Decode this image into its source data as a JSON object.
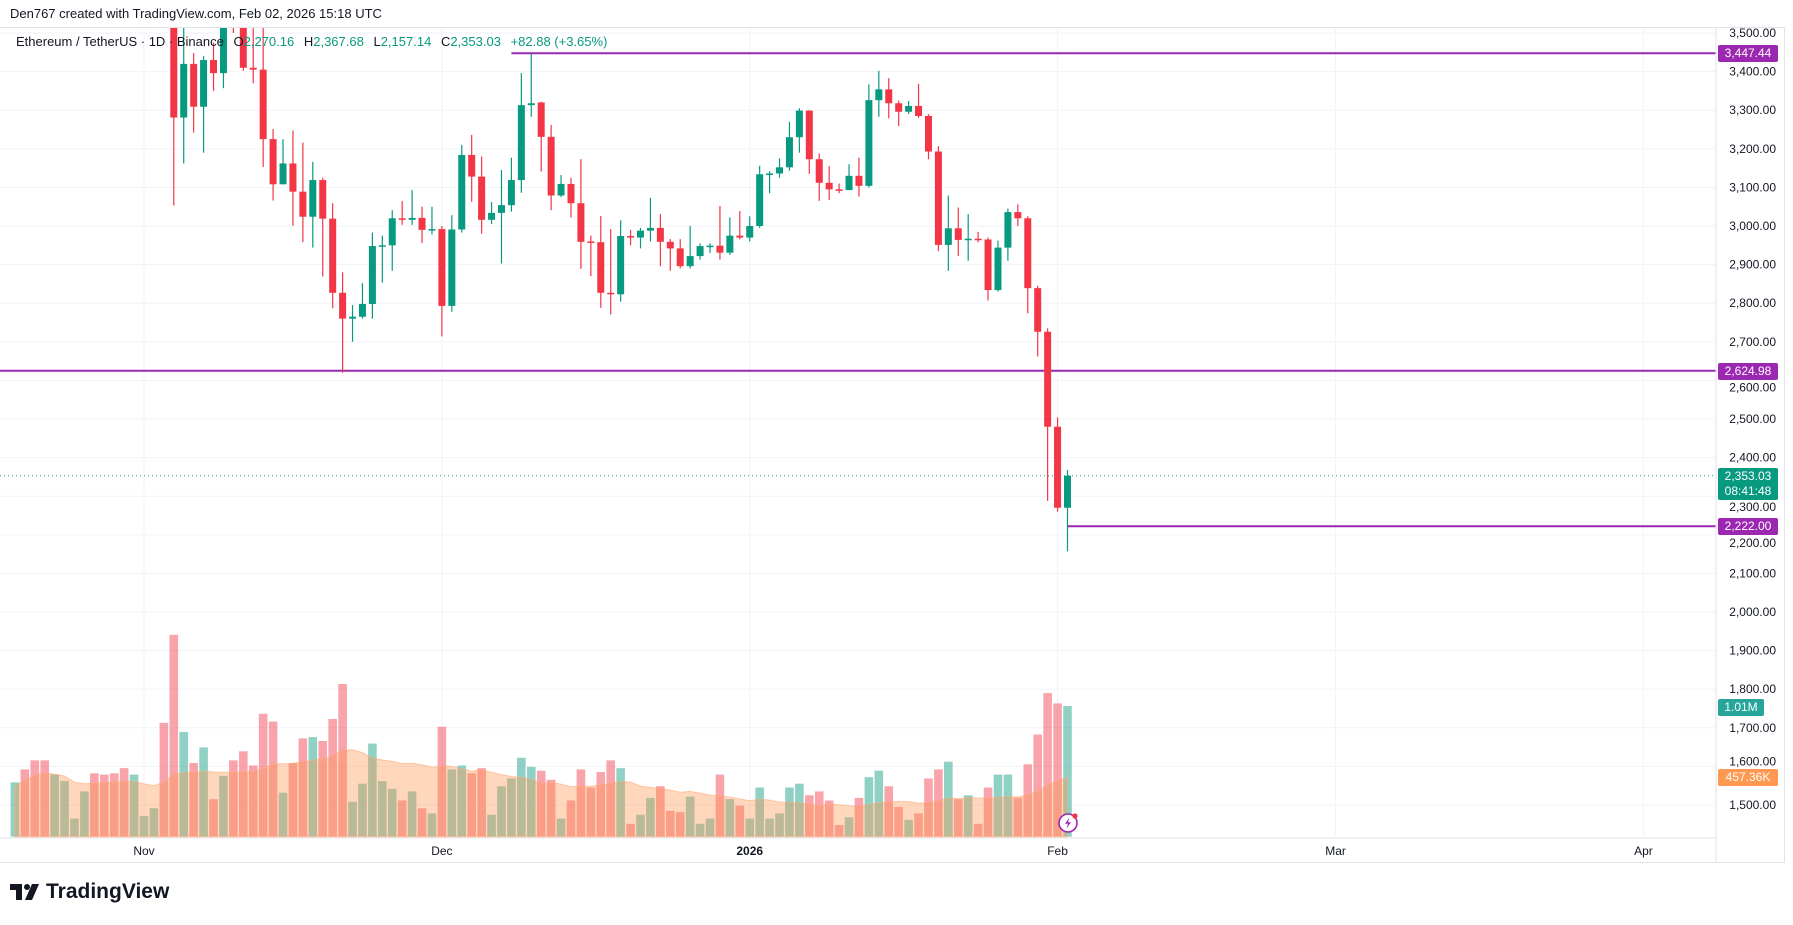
{
  "attribution": "Den767 created with TradingView.com, Feb 02, 2026 15:18 UTC",
  "legend": {
    "symbol": "Ethereum / TetherUS · 1D · Binance",
    "open_label": "O",
    "open": "2,270.16",
    "high_label": "H",
    "high": "2,367.68",
    "low_label": "L",
    "low": "2,157.14",
    "close_label": "C",
    "close": "2,353.03",
    "change": "+82.88 (+3.65%)"
  },
  "price_labels": {
    "resistance": "3,447.44",
    "support_mid": "2,624.98",
    "support_low": "2,222.00",
    "last_price": "2,353.03",
    "countdown": "08:41:48",
    "volume": "1.01M",
    "volume_ma": "457.36K"
  },
  "footer": {
    "brand": "TradingView"
  },
  "colors": {
    "up": "#089981",
    "down": "#f23645",
    "level_line": "#9c27b0",
    "volume_ma": "#ff9800"
  },
  "chart_data": {
    "type": "candlestick",
    "symbol": "ETHUSDT",
    "interval": "1D",
    "ylim": [
      1450,
      3520
    ],
    "y_ticks": [
      "3,500.00",
      "3,400.00",
      "3,300.00",
      "3,200.00",
      "3,100.00",
      "3,000.00",
      "2,900.00",
      "2,800.00",
      "2,700.00",
      "2,600.00",
      "2,500.00",
      "2,400.00",
      "2,300.00",
      "2,200.00",
      "2,100.00",
      "2,000.00",
      "1,900.00",
      "1,800.00",
      "1,700.00",
      "1,600.00",
      "1,500.00"
    ],
    "x_ticks": [
      {
        "label": "Nov",
        "date": "2025-11-01"
      },
      {
        "label": "Dec",
        "date": "2025-12-01"
      },
      {
        "label": "2026",
        "date": "2026-01-01"
      },
      {
        "label": "Feb",
        "date": "2026-02-01"
      },
      {
        "label": "Mar",
        "date": "2026-03-01"
      },
      {
        "label": "Apr",
        "date": "2026-04-01"
      }
    ],
    "x_range": [
      "2025-10-18",
      "2026-04-07"
    ],
    "grid": true,
    "horizontal_levels": [
      {
        "price": 3447.44,
        "from": "2025-12-08"
      },
      {
        "price": 2624.98,
        "from": "2025-10-18"
      },
      {
        "price": 2222.0,
        "from": "2026-02-02"
      }
    ],
    "last_price": 2353.03,
    "candles_columns": [
      "date",
      "open",
      "high",
      "low",
      "close"
    ],
    "candles": [
      [
        "2025-11-04",
        3580,
        3600,
        3053,
        3281
      ],
      [
        "2025-11-05",
        3281,
        3540,
        3162,
        3420
      ],
      [
        "2025-11-06",
        3420,
        3448,
        3242,
        3309
      ],
      [
        "2025-11-07",
        3309,
        3440,
        3190,
        3430
      ],
      [
        "2025-11-08",
        3430,
        3475,
        3350,
        3396
      ],
      [
        "2025-11-09",
        3396,
        3620,
        3357,
        3560
      ],
      [
        "2025-11-10",
        3560,
        3640,
        3500,
        3540
      ],
      [
        "2025-11-11",
        3540,
        3560,
        3402,
        3410
      ],
      [
        "2025-11-12",
        3410,
        3520,
        3370,
        3405
      ],
      [
        "2025-11-13",
        3405,
        3530,
        3153,
        3225
      ],
      [
        "2025-11-14",
        3225,
        3251,
        3066,
        3108
      ],
      [
        "2025-11-15",
        3108,
        3225,
        3108,
        3162
      ],
      [
        "2025-11-16",
        3162,
        3247,
        3001,
        3089
      ],
      [
        "2025-11-17",
        3089,
        3216,
        2958,
        3024
      ],
      [
        "2025-11-18",
        3024,
        3166,
        2944,
        3119
      ],
      [
        "2025-11-19",
        3119,
        3125,
        2869,
        3019
      ],
      [
        "2025-11-20",
        3019,
        3059,
        2787,
        2827
      ],
      [
        "2025-11-21",
        2827,
        2880,
        2620,
        2760
      ],
      [
        "2025-11-22",
        2760,
        2795,
        2700,
        2765
      ],
      [
        "2025-11-23",
        2765,
        2852,
        2760,
        2798
      ],
      [
        "2025-11-24",
        2798,
        2983,
        2760,
        2948
      ],
      [
        "2025-11-25",
        2948,
        2975,
        2853,
        2950
      ],
      [
        "2025-11-26",
        2950,
        3041,
        2884,
        3020
      ],
      [
        "2025-11-27",
        3020,
        3065,
        3003,
        3016
      ],
      [
        "2025-11-28",
        3016,
        3093,
        3003,
        3021
      ],
      [
        "2025-11-29",
        3021,
        3050,
        2956,
        2990
      ],
      [
        "2025-11-30",
        2990,
        3050,
        2978,
        2992
      ],
      [
        "2025-12-01",
        2992,
        3000,
        2714,
        2793
      ],
      [
        "2025-12-02",
        2793,
        3028,
        2778,
        2991
      ],
      [
        "2025-12-03",
        2991,
        3210,
        2983,
        3184
      ],
      [
        "2025-12-04",
        3184,
        3236,
        3063,
        3128
      ],
      [
        "2025-12-05",
        3128,
        3180,
        2980,
        3016
      ],
      [
        "2025-12-06",
        3016,
        3062,
        3005,
        3034
      ],
      [
        "2025-12-07",
        3034,
        3145,
        2903,
        3054
      ],
      [
        "2025-12-08",
        3054,
        3177,
        3037,
        3119
      ],
      [
        "2025-12-09",
        3119,
        3396,
        3086,
        3313
      ],
      [
        "2025-12-10",
        3313,
        3447,
        3283,
        3318
      ],
      [
        "2025-12-11",
        3320,
        3322,
        3141,
        3231
      ],
      [
        "2025-12-12",
        3231,
        3262,
        3041,
        3079
      ],
      [
        "2025-12-13",
        3079,
        3132,
        3075,
        3109
      ],
      [
        "2025-12-14",
        3109,
        3125,
        3022,
        3059
      ],
      [
        "2025-12-15",
        3059,
        3173,
        2889,
        2959
      ],
      [
        "2025-12-16",
        2960,
        2975,
        2870,
        2958
      ],
      [
        "2025-12-17",
        2958,
        3026,
        2788,
        2827
      ],
      [
        "2025-12-18",
        2827,
        2992,
        2771,
        2823
      ],
      [
        "2025-12-19",
        2823,
        3015,
        2804,
        2974
      ],
      [
        "2025-12-20",
        2974,
        2990,
        2950,
        2970
      ],
      [
        "2025-12-21",
        2970,
        2995,
        2942,
        2988
      ],
      [
        "2025-12-22",
        2988,
        3073,
        2960,
        2995
      ],
      [
        "2025-12-23",
        2995,
        3031,
        2896,
        2959
      ],
      [
        "2025-12-24",
        2959,
        2966,
        2884,
        2942
      ],
      [
        "2025-12-25",
        2942,
        2966,
        2890,
        2896
      ],
      [
        "2025-12-26",
        2896,
        3000,
        2890,
        2922
      ],
      [
        "2025-12-27",
        2922,
        2955,
        2913,
        2948
      ],
      [
        "2025-12-28",
        2948,
        2955,
        2930,
        2949
      ],
      [
        "2025-12-29",
        2949,
        3052,
        2913,
        2931
      ],
      [
        "2025-12-30",
        2931,
        3022,
        2925,
        2975
      ],
      [
        "2025-12-31",
        2975,
        3039,
        2965,
        2970
      ],
      [
        "2026-01-01",
        2970,
        3025,
        2960,
        3000
      ],
      [
        "2026-01-02",
        3000,
        3156,
        2995,
        3134
      ],
      [
        "2026-01-03",
        3134,
        3142,
        3085,
        3136
      ],
      [
        "2026-01-04",
        3136,
        3175,
        3125,
        3152
      ],
      [
        "2026-01-05",
        3152,
        3270,
        3143,
        3230
      ],
      [
        "2026-01-06",
        3230,
        3305,
        3190,
        3299
      ],
      [
        "2026-01-07",
        3299,
        3300,
        3135,
        3173
      ],
      [
        "2026-01-08",
        3173,
        3188,
        3065,
        3112
      ],
      [
        "2026-01-09",
        3112,
        3155,
        3067,
        3095
      ],
      [
        "2026-01-10",
        3095,
        3110,
        3085,
        3093
      ],
      [
        "2026-01-11",
        3093,
        3160,
        3093,
        3130
      ],
      [
        "2026-01-12",
        3130,
        3177,
        3076,
        3104
      ],
      [
        "2026-01-13",
        3104,
        3367,
        3100,
        3326
      ],
      [
        "2026-01-14",
        3326,
        3402,
        3283,
        3354
      ],
      [
        "2026-01-15",
        3354,
        3383,
        3279,
        3318
      ],
      [
        "2026-01-16",
        3318,
        3325,
        3259,
        3296
      ],
      [
        "2026-01-17",
        3296,
        3324,
        3290,
        3311
      ],
      [
        "2026-01-18",
        3311,
        3368,
        3280,
        3285
      ],
      [
        "2026-01-19",
        3285,
        3290,
        3173,
        3193
      ],
      [
        "2026-01-20",
        3193,
        3207,
        2935,
        2951
      ],
      [
        "2026-01-21",
        2951,
        3079,
        2884,
        2994
      ],
      [
        "2026-01-22",
        2994,
        3048,
        2922,
        2964
      ],
      [
        "2026-01-23",
        2964,
        3031,
        2910,
        2967
      ],
      [
        "2026-01-24",
        2967,
        2985,
        2958,
        2965
      ],
      [
        "2026-01-25",
        2965,
        2970,
        2807,
        2834
      ],
      [
        "2026-01-26",
        2834,
        2962,
        2830,
        2944
      ],
      [
        "2026-01-27",
        2944,
        3045,
        2910,
        3036
      ],
      [
        "2026-01-28",
        3036,
        3056,
        3000,
        3020
      ],
      [
        "2026-01-29",
        3020,
        3025,
        2774,
        2839
      ],
      [
        "2026-01-30",
        2839,
        2845,
        2662,
        2726
      ],
      [
        "2026-01-31",
        2726,
        2735,
        2288,
        2480
      ],
      [
        "2026-02-01",
        2480,
        2504,
        2260,
        2270.16
      ],
      [
        "2026-02-02",
        2270.16,
        2367.68,
        2157.14,
        2353.03
      ]
    ],
    "volume_unit": "M",
    "volume_columns": [
      "date",
      "volume",
      "direction"
    ],
    "volume": [
      [
        "2025-10-19",
        0.42,
        "up"
      ],
      [
        "2025-10-20",
        0.52,
        "down"
      ],
      [
        "2025-10-21",
        0.59,
        "down"
      ],
      [
        "2025-10-22",
        0.59,
        "down"
      ],
      [
        "2025-10-23",
        0.48,
        "up"
      ],
      [
        "2025-10-24",
        0.43,
        "up"
      ],
      [
        "2025-10-25",
        0.14,
        "up"
      ],
      [
        "2025-10-26",
        0.35,
        "up"
      ],
      [
        "2025-10-27",
        0.49,
        "down"
      ],
      [
        "2025-10-28",
        0.48,
        "down"
      ],
      [
        "2025-10-29",
        0.49,
        "down"
      ],
      [
        "2025-10-30",
        0.53,
        "down"
      ],
      [
        "2025-10-31",
        0.48,
        "up"
      ],
      [
        "2025-11-01",
        0.16,
        "up"
      ],
      [
        "2025-11-02",
        0.22,
        "up"
      ],
      [
        "2025-11-03",
        0.88,
        "down"
      ],
      [
        "2025-11-04",
        1.56,
        "down"
      ],
      [
        "2025-11-05",
        0.81,
        "up"
      ],
      [
        "2025-11-06",
        0.57,
        "down"
      ],
      [
        "2025-11-07",
        0.69,
        "up"
      ],
      [
        "2025-11-08",
        0.29,
        "down"
      ],
      [
        "2025-11-09",
        0.47,
        "up"
      ],
      [
        "2025-11-10",
        0.59,
        "down"
      ],
      [
        "2025-11-11",
        0.66,
        "down"
      ],
      [
        "2025-11-12",
        0.55,
        "down"
      ],
      [
        "2025-11-13",
        0.95,
        "down"
      ],
      [
        "2025-11-14",
        0.89,
        "down"
      ],
      [
        "2025-11-15",
        0.34,
        "up"
      ],
      [
        "2025-11-16",
        0.57,
        "down"
      ],
      [
        "2025-11-17",
        0.76,
        "down"
      ],
      [
        "2025-11-18",
        0.77,
        "up"
      ],
      [
        "2025-11-19",
        0.74,
        "down"
      ],
      [
        "2025-11-20",
        0.91,
        "down"
      ],
      [
        "2025-11-21",
        1.18,
        "down"
      ],
      [
        "2025-11-22",
        0.27,
        "up"
      ],
      [
        "2025-11-23",
        0.41,
        "up"
      ],
      [
        "2025-11-24",
        0.72,
        "up"
      ],
      [
        "2025-11-25",
        0.43,
        "up"
      ],
      [
        "2025-11-26",
        0.37,
        "up"
      ],
      [
        "2025-11-27",
        0.28,
        "down"
      ],
      [
        "2025-11-28",
        0.35,
        "up"
      ],
      [
        "2025-11-29",
        0.22,
        "down"
      ],
      [
        "2025-11-30",
        0.18,
        "up"
      ],
      [
        "2025-12-01",
        0.85,
        "down"
      ],
      [
        "2025-12-02",
        0.52,
        "up"
      ],
      [
        "2025-12-03",
        0.55,
        "up"
      ],
      [
        "2025-12-04",
        0.49,
        "down"
      ],
      [
        "2025-12-05",
        0.53,
        "down"
      ],
      [
        "2025-12-06",
        0.17,
        "up"
      ],
      [
        "2025-12-07",
        0.39,
        "up"
      ],
      [
        "2025-12-08",
        0.45,
        "up"
      ],
      [
        "2025-12-09",
        0.61,
        "up"
      ],
      [
        "2025-12-10",
        0.54,
        "up"
      ],
      [
        "2025-12-11",
        0.51,
        "down"
      ],
      [
        "2025-12-12",
        0.44,
        "down"
      ],
      [
        "2025-12-13",
        0.14,
        "up"
      ],
      [
        "2025-12-14",
        0.28,
        "down"
      ],
      [
        "2025-12-15",
        0.52,
        "down"
      ],
      [
        "2025-12-16",
        0.38,
        "down"
      ],
      [
        "2025-12-17",
        0.5,
        "down"
      ],
      [
        "2025-12-18",
        0.59,
        "down"
      ],
      [
        "2025-12-19",
        0.53,
        "up"
      ],
      [
        "2025-12-20",
        0.1,
        "down"
      ],
      [
        "2025-12-21",
        0.17,
        "up"
      ],
      [
        "2025-12-22",
        0.3,
        "up"
      ],
      [
        "2025-12-23",
        0.39,
        "down"
      ],
      [
        "2025-12-24",
        0.2,
        "down"
      ],
      [
        "2025-12-25",
        0.19,
        "down"
      ],
      [
        "2025-12-26",
        0.31,
        "up"
      ],
      [
        "2025-12-27",
        0.1,
        "up"
      ],
      [
        "2025-12-28",
        0.14,
        "up"
      ],
      [
        "2025-12-29",
        0.48,
        "down"
      ],
      [
        "2025-12-30",
        0.29,
        "up"
      ],
      [
        "2025-12-31",
        0.24,
        "down"
      ],
      [
        "2026-01-01",
        0.14,
        "up"
      ],
      [
        "2026-01-02",
        0.38,
        "up"
      ],
      [
        "2026-01-03",
        0.14,
        "up"
      ],
      [
        "2026-01-04",
        0.18,
        "up"
      ],
      [
        "2026-01-05",
        0.38,
        "up"
      ],
      [
        "2026-01-06",
        0.41,
        "up"
      ],
      [
        "2026-01-07",
        0.32,
        "down"
      ],
      [
        "2026-01-08",
        0.35,
        "down"
      ],
      [
        "2026-01-09",
        0.28,
        "down"
      ],
      [
        "2026-01-10",
        0.09,
        "down"
      ],
      [
        "2026-01-11",
        0.15,
        "up"
      ],
      [
        "2026-01-12",
        0.3,
        "down"
      ],
      [
        "2026-01-13",
        0.46,
        "up"
      ],
      [
        "2026-01-14",
        0.51,
        "up"
      ],
      [
        "2026-01-15",
        0.39,
        "down"
      ],
      [
        "2026-01-16",
        0.23,
        "down"
      ],
      [
        "2026-01-17",
        0.13,
        "up"
      ],
      [
        "2026-01-18",
        0.18,
        "down"
      ],
      [
        "2026-01-19",
        0.45,
        "down"
      ],
      [
        "2026-01-20",
        0.52,
        "down"
      ],
      [
        "2026-01-21",
        0.58,
        "up"
      ],
      [
        "2026-01-22",
        0.29,
        "down"
      ],
      [
        "2026-01-23",
        0.32,
        "up"
      ],
      [
        "2026-01-24",
        0.1,
        "down"
      ],
      [
        "2026-01-25",
        0.38,
        "down"
      ],
      [
        "2026-01-26",
        0.48,
        "up"
      ],
      [
        "2026-01-27",
        0.48,
        "up"
      ],
      [
        "2026-01-28",
        0.3,
        "down"
      ],
      [
        "2026-01-29",
        0.56,
        "down"
      ],
      [
        "2026-01-30",
        0.79,
        "down"
      ],
      [
        "2026-01-31",
        1.11,
        "down"
      ],
      [
        "2026-02-01",
        1.03,
        "down"
      ],
      [
        "2026-02-02",
        1.01,
        "up"
      ]
    ],
    "volume_ma_last": 0.45736
  }
}
